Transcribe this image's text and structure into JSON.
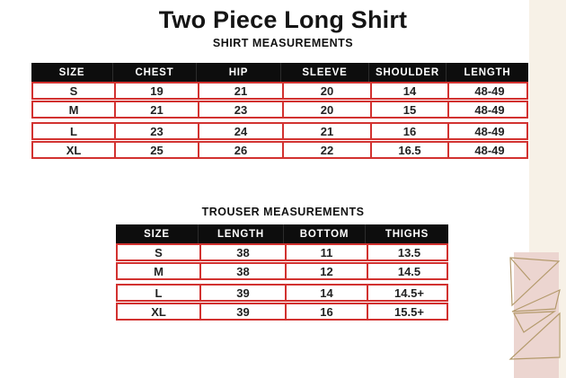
{
  "page": {
    "title": "Two Piece Long Shirt",
    "colors": {
      "accent_red": "#d23230",
      "header_black": "#0d0d0d",
      "cream_strip": "#f7f1e7",
      "pink_block": "#ecd5d0",
      "triangle_stroke": "#b49a6c"
    }
  },
  "shirt_table": {
    "caption": "SHIRT MEASUREMENTS",
    "columns": [
      "SIZE",
      "CHEST",
      "HIP",
      "SLEEVE",
      "SHOULDER",
      "LENGTH"
    ],
    "rows": [
      [
        "S",
        "19",
        "21",
        "20",
        "14",
        "48-49"
      ],
      [
        "M",
        "21",
        "23",
        "20",
        "15",
        "48-49"
      ],
      [
        "L",
        "23",
        "24",
        "21",
        "16",
        "48-49"
      ],
      [
        "XL",
        "25",
        "26",
        "22",
        "16.5",
        "48-49"
      ]
    ]
  },
  "trouser_table": {
    "caption": "TROUSER MEASUREMENTS",
    "columns": [
      "SIZE",
      "LENGTH",
      "BOTTOM",
      "THIGHS"
    ],
    "rows": [
      [
        "S",
        "38",
        "11",
        "13.5"
      ],
      [
        "M",
        "38",
        "12",
        "14.5"
      ],
      [
        "L",
        "39",
        "14",
        "14.5+"
      ],
      [
        "XL",
        "39",
        "16",
        "15.5+"
      ]
    ]
  }
}
